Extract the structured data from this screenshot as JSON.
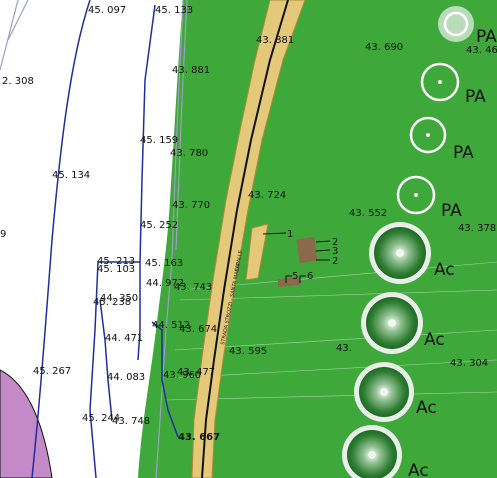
{
  "map": {
    "colors": {
      "grass": "#3fa83a",
      "road": "#e4c97a",
      "road_edge": "#b08a30",
      "contour": "#1f2f9a",
      "lake": "#c38ac7",
      "building": "#8a6a4a",
      "tree_light": "#f2f2f2",
      "tree_dark": "#2b7a2b"
    },
    "elevations": {
      "e1": "45. 097",
      "e2": "45. 133",
      "e3": "43. 881",
      "e4": "43. 690",
      "e5": "43. 46",
      "e6": "2. 308",
      "e7": "43. 881",
      "e8": "45. 159",
      "e9": "43. 780",
      "e10": "45. 134",
      "e11": "43. 724",
      "e12": "43. 770",
      "e13": "43. 552",
      "e14": "43. 378",
      "e15": "45. 252",
      "e16": "45. 213",
      "e17": "45. 163",
      "e18": "45. 103",
      "e19": "44. 972",
      "e20": "43. 743",
      "e21": "44. 350",
      "e22": "45. 238",
      "e23": "44. 512",
      "e24": "43. 674",
      "e25": "44. 471",
      "e26": "43. 595",
      "e27": "43.",
      "e28": "45. 267",
      "e29": "44. 083",
      "e30": "43. 477",
      "e31": "43. 960",
      "e32": "43. 304",
      "e33": "45. 244",
      "e34": "43. 748",
      "e35": "43. 667",
      "e36": "9"
    },
    "trees": {
      "t1": "PA",
      "t2": "PA",
      "t3": "PA",
      "t4": "PA",
      "t5": "Ac",
      "t6": "Ac",
      "t7": "Ac",
      "t8": "Ac"
    },
    "markers": {
      "m1": "1",
      "m2": "2",
      "m3": "3",
      "m4": "2",
      "m5": "5",
      "m6": "6"
    },
    "road_labels": {
      "r1": "STRADA STROZZI - SANTA MARIA",
      "r2": "CAPALLE"
    }
  }
}
